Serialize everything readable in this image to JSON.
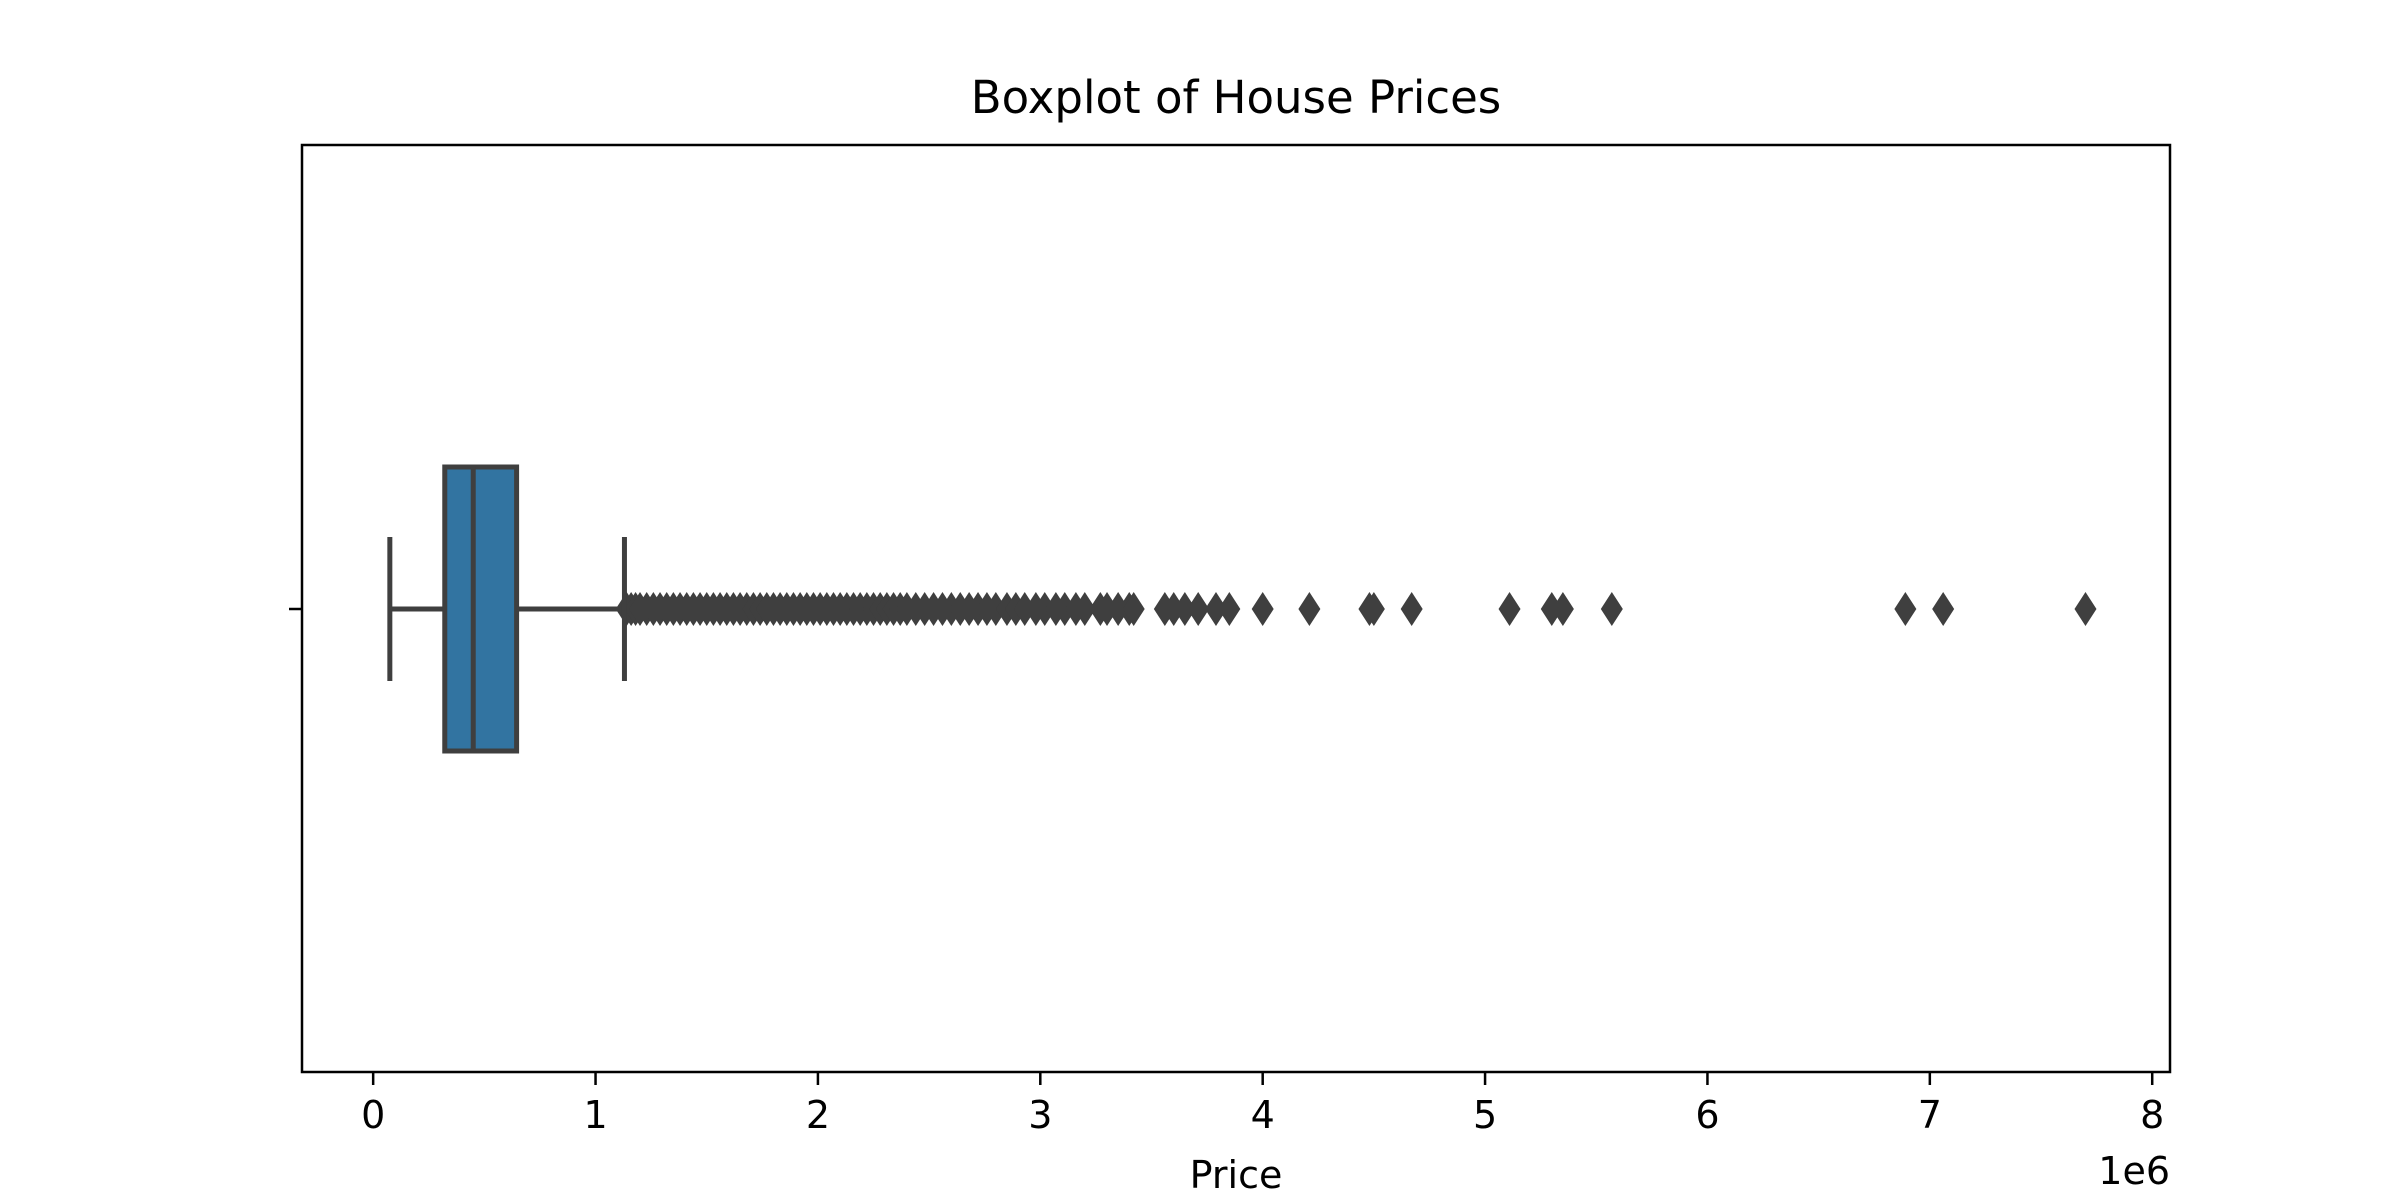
{
  "chart_data": {
    "type": "boxplot",
    "title": "Boxplot of House Prices",
    "xlabel": "Price",
    "ylabel": "",
    "orientation": "horizontal",
    "xlim": [
      -320000,
      8080000
    ],
    "x_ticks": [
      0,
      1000000,
      2000000,
      3000000,
      4000000,
      5000000,
      6000000,
      7000000,
      8000000
    ],
    "x_tick_labels": [
      "0",
      "1",
      "2",
      "3",
      "4",
      "5",
      "6",
      "7",
      "8"
    ],
    "x_offset_label": "1e6",
    "grid": false,
    "colors": {
      "box_fill": "#3274a1",
      "line": "#3f3f3f",
      "axes": "#000000"
    },
    "box": {
      "whisker_low": 75000,
      "q1": 322000,
      "median": 450000,
      "q3": 645000,
      "whisker_high": 1130000
    },
    "outliers": [
      1140000,
      1160000,
      1180000,
      1200000,
      1230000,
      1260000,
      1290000,
      1320000,
      1350000,
      1380000,
      1410000,
      1440000,
      1470000,
      1500000,
      1530000,
      1560000,
      1590000,
      1620000,
      1650000,
      1680000,
      1710000,
      1740000,
      1770000,
      1800000,
      1830000,
      1860000,
      1890000,
      1920000,
      1950000,
      1980000,
      2010000,
      2040000,
      2070000,
      2100000,
      2130000,
      2160000,
      2190000,
      2220000,
      2250000,
      2280000,
      2310000,
      2340000,
      2370000,
      2400000,
      2440000,
      2480000,
      2520000,
      2560000,
      2600000,
      2640000,
      2680000,
      2720000,
      2760000,
      2800000,
      2850000,
      2890000,
      2930000,
      2980000,
      3020000,
      3070000,
      3110000,
      3160000,
      3200000,
      3270000,
      3300000,
      3350000,
      3400000,
      3420000,
      3560000,
      3600000,
      3650000,
      3710000,
      3790000,
      3850000,
      4000000,
      4210000,
      4480000,
      4500000,
      4670000,
      5110000,
      5300000,
      5350000,
      5570000,
      6890000,
      7060000,
      7700000
    ]
  }
}
